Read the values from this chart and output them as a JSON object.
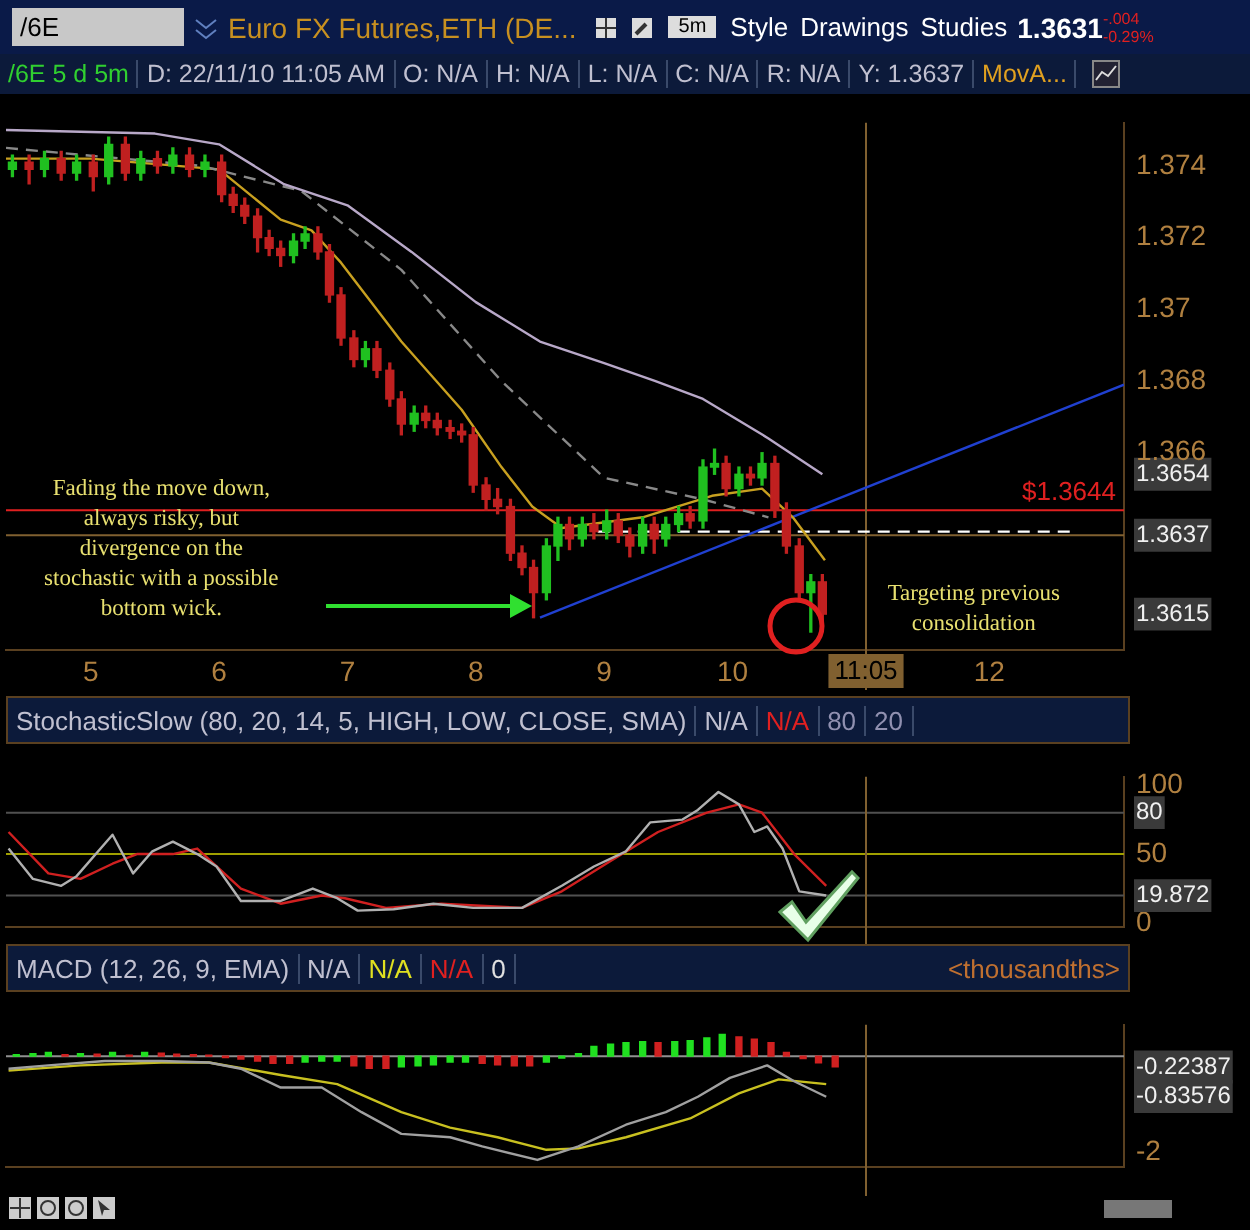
{
  "chart_data": [
    {
      "type": "candlestick",
      "title": "Euro FX Futures,ETH (DE...",
      "annotations": [
        "/6E",
        "5m",
        "Style",
        "Drawings",
        "Studies",
        "1.3631",
        "-.004",
        "-0.29%",
        "/6E 5 d 5m",
        "D: 22/11/10 11:05 AM",
        "O: N/A",
        "H: N/A",
        "L: N/A",
        "C: N/A",
        "R: N/A",
        "Y: 1.3637",
        "MovA...",
        {
          "text": "Fading the move down, always risky, but divergence on the stochastic with a possible bottom wick.",
          "x": 5.55,
          "y": 1.3638
        },
        {
          "text": "Targeting previous consolidation",
          "x": 11.88,
          "y": 1.3638
        }
      ],
      "x": [
        4.39,
        4.52,
        4.64,
        4.77,
        4.89,
        5.02,
        5.14,
        5.27,
        5.39,
        5.52,
        5.64,
        5.77,
        5.89,
        6.02,
        6.11,
        6.2,
        6.3,
        6.39,
        6.48,
        6.58,
        6.67,
        6.77,
        6.86,
        6.95,
        7.05,
        7.14,
        7.23,
        7.33,
        7.42,
        7.52,
        7.61,
        7.7,
        7.8,
        7.89,
        7.98,
        8.08,
        8.17,
        8.27,
        8.36,
        8.45,
        8.55,
        8.64,
        8.73,
        8.83,
        8.92,
        9.02,
        9.11,
        9.2,
        9.3,
        9.39,
        9.48,
        9.58,
        9.67,
        9.77,
        9.86,
        9.95,
        10.05,
        10.14,
        10.23,
        10.33,
        10.42,
        10.52,
        10.61,
        10.7
      ],
      "ohlc": [
        [
          1.3739,
          1.3743,
          1.3737,
          1.3741
        ],
        [
          1.3741,
          1.3743,
          1.3735,
          1.3739
        ],
        [
          1.3739,
          1.3744,
          1.3737,
          1.3742
        ],
        [
          1.3742,
          1.3744,
          1.3736,
          1.3738
        ],
        [
          1.3738,
          1.3743,
          1.3736,
          1.3741
        ],
        [
          1.3741,
          1.3743,
          1.3733,
          1.3737
        ],
        [
          1.3737,
          1.3748,
          1.3735,
          1.3746
        ],
        [
          1.3746,
          1.3748,
          1.3736,
          1.3738
        ],
        [
          1.3738,
          1.3744,
          1.3736,
          1.3742
        ],
        [
          1.3742,
          1.3744,
          1.3738,
          1.374
        ],
        [
          1.374,
          1.3745,
          1.3738,
          1.3743
        ],
        [
          1.3743,
          1.3745,
          1.3737,
          1.3739
        ],
        [
          1.3739,
          1.3743,
          1.3737,
          1.3741
        ],
        [
          1.3741,
          1.3743,
          1.373,
          1.3732
        ],
        [
          1.3732,
          1.3734,
          1.3727,
          1.3729
        ],
        [
          1.3729,
          1.3731,
          1.3724,
          1.3726
        ],
        [
          1.3726,
          1.3728,
          1.3716,
          1.372
        ],
        [
          1.372,
          1.3722,
          1.3715,
          1.3717
        ],
        [
          1.3717,
          1.3719,
          1.3712,
          1.3715
        ],
        [
          1.3715,
          1.3721,
          1.3713,
          1.3719
        ],
        [
          1.3719,
          1.3723,
          1.3717,
          1.3721
        ],
        [
          1.3721,
          1.3723,
          1.3714,
          1.3716
        ],
        [
          1.3716,
          1.3718,
          1.3702,
          1.3704
        ],
        [
          1.3704,
          1.3706,
          1.369,
          1.3692
        ],
        [
          1.3692,
          1.3694,
          1.3684,
          1.3686
        ],
        [
          1.3686,
          1.3691,
          1.3684,
          1.3689
        ],
        [
          1.3689,
          1.3691,
          1.3681,
          1.3683
        ],
        [
          1.3683,
          1.3685,
          1.3673,
          1.3675
        ],
        [
          1.3675,
          1.3677,
          1.3665,
          1.3668
        ],
        [
          1.3668,
          1.3673,
          1.3666,
          1.3671
        ],
        [
          1.3671,
          1.3673,
          1.3667,
          1.3669
        ],
        [
          1.3669,
          1.3671,
          1.3665,
          1.3667
        ],
        [
          1.3667,
          1.3669,
          1.3664,
          1.3666
        ],
        [
          1.3666,
          1.3668,
          1.3663,
          1.3665
        ],
        [
          1.3665,
          1.3667,
          1.3649,
          1.3651
        ],
        [
          1.3651,
          1.3653,
          1.3644,
          1.3647
        ],
        [
          1.3647,
          1.365,
          1.3643,
          1.3645
        ],
        [
          1.3645,
          1.3647,
          1.363,
          1.3632
        ],
        [
          1.3632,
          1.3634,
          1.3626,
          1.3628
        ],
        [
          1.3628,
          1.363,
          1.3614,
          1.3621
        ],
        [
          1.3621,
          1.3636,
          1.3619,
          1.3634
        ],
        [
          1.3634,
          1.3642,
          1.363,
          1.364
        ],
        [
          1.364,
          1.3642,
          1.3633,
          1.3636
        ],
        [
          1.3636,
          1.3642,
          1.3634,
          1.364
        ],
        [
          1.364,
          1.3643,
          1.3636,
          1.3638
        ],
        [
          1.3638,
          1.3644,
          1.3636,
          1.3641
        ],
        [
          1.3641,
          1.3643,
          1.3635,
          1.3637
        ],
        [
          1.3637,
          1.3639,
          1.3631,
          1.3634
        ],
        [
          1.3634,
          1.3642,
          1.3632,
          1.364
        ],
        [
          1.364,
          1.3642,
          1.3632,
          1.3636
        ],
        [
          1.3636,
          1.3642,
          1.3634,
          1.364
        ],
        [
          1.364,
          1.3645,
          1.3638,
          1.3643
        ],
        [
          1.3643,
          1.3645,
          1.3639,
          1.3641
        ],
        [
          1.3641,
          1.3658,
          1.3639,
          1.3656
        ],
        [
          1.3656,
          1.3661,
          1.3654,
          1.3657
        ],
        [
          1.3657,
          1.3659,
          1.3648,
          1.365
        ],
        [
          1.365,
          1.3656,
          1.3648,
          1.3654
        ],
        [
          1.3654,
          1.3656,
          1.3651,
          1.3653
        ],
        [
          1.3653,
          1.366,
          1.3651,
          1.3657
        ],
        [
          1.3657,
          1.3659,
          1.3642,
          1.3644
        ],
        [
          1.3644,
          1.3646,
          1.3632,
          1.3634
        ],
        [
          1.3634,
          1.3636,
          1.3619,
          1.3621
        ],
        [
          1.3621,
          1.3626,
          1.361,
          1.3624
        ],
        [
          1.3624,
          1.3626,
          1.3613,
          1.3615
        ]
      ],
      "colors": [
        "#20c020",
        "#c02020",
        "#20c020",
        "#c02020",
        "#20c020",
        "#c02020",
        "#20c020",
        "#c02020",
        "#20c020",
        "#c02020",
        "#20c020",
        "#c02020",
        "#20c020",
        "#c02020",
        "#c02020",
        "#c02020",
        "#c02020",
        "#c02020",
        "#c02020",
        "#20c020",
        "#20c020",
        "#c02020",
        "#c02020",
        "#c02020",
        "#c02020",
        "#20c020",
        "#c02020",
        "#c02020",
        "#c02020",
        "#20c020",
        "#c02020",
        "#c02020",
        "#c02020",
        "#c02020",
        "#c02020",
        "#c02020",
        "#c02020",
        "#c02020",
        "#c02020",
        "#c02020",
        "#20c020",
        "#20c020",
        "#c02020",
        "#20c020",
        "#c02020",
        "#20c020",
        "#c02020",
        "#c02020",
        "#20c020",
        "#c02020",
        "#20c020",
        "#20c020",
        "#c02020",
        "#20c020",
        "#20c020",
        "#c02020",
        "#20c020",
        "#c02020",
        "#20c020",
        "#c02020",
        "#c02020",
        "#c02020",
        "#20c020",
        "#c02020"
      ],
      "series": [
        {
          "type": "line",
          "color": "#b8a8c8",
          "x": [
            4.34,
            5.5,
            6.0,
            6.5,
            7.0,
            7.5,
            8.0,
            8.5,
            9.0,
            9.4,
            9.77,
            10.28,
            10.7
          ],
          "values": [
            1.375,
            1.3749,
            1.3746,
            1.3735,
            1.3729,
            1.3716,
            1.3702,
            1.3691,
            1.3685,
            1.368,
            1.3675,
            1.3664,
            1.3654
          ]
        },
        {
          "type": "line",
          "color": "#888888",
          "line_style": "dashed",
          "x": [
            4.34,
            5.86,
            6.64,
            7.42,
            8.2,
            9.0,
            9.77,
            10.28
          ],
          "values": [
            1.3745,
            1.374,
            1.3733,
            1.3711,
            1.368,
            1.3653,
            1.3647,
            1.3642
          ]
        },
        {
          "type": "line",
          "color": "#c8a020",
          "x": [
            4.34,
            5.0,
            6.0,
            6.48,
            6.72,
            6.95,
            7.42,
            7.89,
            8.2,
            8.44,
            8.67,
            9.3,
            9.84,
            10.23,
            10.47,
            10.72
          ],
          "values": [
            1.3742,
            1.3742,
            1.3739,
            1.3725,
            1.3722,
            1.3713,
            1.3691,
            1.3672,
            1.3656,
            1.3645,
            1.3639,
            1.3642,
            1.3648,
            1.365,
            1.3642,
            1.363
          ]
        },
        {
          "type": "line",
          "color": "#2040d0",
          "x": [
            8.5,
            13.05
          ],
          "values": [
            1.3614,
            1.3679
          ]
        },
        {
          "type": "line",
          "color": "#ffffff",
          "line_style": "dashed",
          "x": [
            8.95,
            12.66
          ],
          "values": [
            1.3638,
            1.3638
          ]
        }
      ],
      "ref_lines": [
        {
          "axis": "y",
          "value": 1.3644,
          "label": "$1.3644",
          "color": "#e02020"
        },
        {
          "axis": "y",
          "value": 1.3637,
          "color": "#806030"
        },
        {
          "axis": "x",
          "value": 11.04,
          "label": "11:05",
          "color": "#806030"
        }
      ],
      "xlim": [
        4.34,
        13.05
      ],
      "xticks": [
        5,
        6,
        7,
        8,
        9,
        10,
        12
      ],
      "ylim": [
        1.3605,
        1.3752
      ],
      "yticks": [
        {
          "value": 1.3615,
          "label": "1.3615"
        },
        {
          "value": 1.3637,
          "label": "1.3637"
        },
        {
          "value": 1.3654,
          "label": "1.3654"
        },
        1.366,
        1.368,
        1.37,
        1.372,
        1.374
      ]
    },
    {
      "type": "line",
      "title": "StochasticSlow (80, 20, 14, 5, HIGH, LOW, CLOSE, SMA)",
      "annotations": [
        "N/A",
        "N/A",
        "80",
        "20"
      ],
      "series": [
        {
          "color": "#b0b0b0",
          "x": [
            4.36,
            4.55,
            4.77,
            4.89,
            5.17,
            5.33,
            5.48,
            5.64,
            5.83,
            5.98,
            6.17,
            6.48,
            6.73,
            6.92,
            7.08,
            7.36,
            7.67,
            7.98,
            8.36,
            8.67,
            8.92,
            9.17,
            9.36,
            9.61,
            9.73,
            9.89,
            10.05,
            10.17,
            10.27,
            10.39,
            10.52,
            10.73
          ],
          "values": [
            54,
            32,
            27,
            34,
            64,
            36,
            52,
            59,
            50,
            41,
            16,
            16,
            25,
            18,
            9,
            10,
            14,
            11,
            11,
            27,
            41,
            52,
            73,
            75,
            82,
            95,
            86,
            66,
            70,
            54,
            23,
            20
          ]
        },
        {
          "color": "#d02020",
          "x": [
            4.36,
            4.67,
            4.92,
            5.17,
            5.36,
            5.64,
            5.83,
            6.17,
            6.48,
            6.8,
            6.98,
            7.3,
            7.73,
            8.36,
            8.67,
            9.05,
            9.42,
            9.8,
            10.05,
            10.23,
            10.48,
            10.73
          ],
          "values": [
            66,
            36,
            32,
            43,
            50,
            50,
            54,
            25,
            14,
            20,
            18,
            11,
            14,
            11,
            23,
            45,
            66,
            80,
            86,
            80,
            50,
            27
          ]
        }
      ],
      "ref_lines": [
        {
          "axis": "y",
          "value": 20,
          "color": "#505050"
        },
        {
          "axis": "y",
          "value": 50,
          "color": "#a0a000"
        },
        {
          "axis": "y",
          "value": 80,
          "color": "#505050"
        },
        {
          "axis": "x",
          "value": 11.04,
          "color": "#806030"
        }
      ],
      "xlim": [
        4.34,
        13.05
      ],
      "ylim": [
        -3,
        106
      ],
      "yticks": [
        0,
        {
          "value": 19.872,
          "label": "19.872"
        },
        50,
        {
          "value": 80,
          "label": "80"
        },
        100
      ],
      "tick_labels": "y"
    },
    {
      "type": "line",
      "title": "MACD (12, 26, 9, EMA)",
      "annotations": [
        "N/A",
        "N/A",
        "N/A",
        "0",
        "<thousandths>"
      ],
      "series": [
        {
          "type": "bar",
          "x": [
            4.42,
            4.55,
            4.67,
            4.8,
            4.92,
            5.05,
            5.17,
            5.3,
            5.42,
            5.55,
            5.67,
            5.8,
            5.92,
            6.05,
            6.17,
            6.3,
            6.42,
            6.55,
            6.67,
            6.8,
            6.92,
            7.05,
            7.17,
            7.3,
            7.42,
            7.55,
            7.67,
            7.8,
            7.92,
            8.05,
            8.17,
            8.3,
            8.42,
            8.55,
            8.67,
            8.8,
            8.92,
            9.05,
            9.17,
            9.3,
            9.42,
            9.55,
            9.67,
            9.8,
            9.92,
            10.05,
            10.17,
            10.3,
            10.42,
            10.55,
            10.67,
            10.8
          ],
          "values": [
            0.03,
            0.05,
            0.08,
            0.03,
            0.05,
            0.04,
            0.08,
            0.02,
            0.08,
            0.06,
            0.04,
            0.03,
            0.02,
            -0.03,
            -0.06,
            -0.1,
            -0.15,
            -0.15,
            -0.12,
            -0.1,
            -0.1,
            -0.2,
            -0.25,
            -0.25,
            -0.22,
            -0.2,
            -0.18,
            -0.12,
            -0.12,
            -0.15,
            -0.18,
            -0.2,
            -0.2,
            -0.12,
            -0.04,
            0.05,
            0.2,
            0.25,
            0.28,
            0.3,
            0.28,
            0.3,
            0.32,
            0.38,
            0.45,
            0.4,
            0.35,
            0.28,
            0.08,
            -0.05,
            -0.14,
            -0.22
          ],
          "colors": [
            "#20e020",
            "#20e020",
            "#20e020",
            "#d02020",
            "#20e020",
            "#d02020",
            "#20e020",
            "#d02020",
            "#20e020",
            "#d02020",
            "#d02020",
            "#d02020",
            "#d02020",
            "#d02020",
            "#d02020",
            "#d02020",
            "#d02020",
            "#d02020",
            "#20e020",
            "#20e020",
            "#20e020",
            "#d02020",
            "#d02020",
            "#d02020",
            "#20e020",
            "#20e020",
            "#20e020",
            "#20e020",
            "#20e020",
            "#d02020",
            "#d02020",
            "#d02020",
            "#d02020",
            "#20e020",
            "#20e020",
            "#20e020",
            "#20e020",
            "#20e020",
            "#20e020",
            "#20e020",
            "#d02020",
            "#20e020",
            "#20e020",
            "#20e020",
            "#20e020",
            "#d02020",
            "#d02020",
            "#d02020",
            "#d02020",
            "#d02020",
            "#d02020",
            "#d02020"
          ]
        },
        {
          "color": "#a0a0a0",
          "x": [
            4.36,
            4.67,
            5.11,
            5.55,
            5.92,
            6.17,
            6.48,
            6.8,
            7.11,
            7.42,
            7.8,
            8.05,
            8.48,
            8.8,
            9.17,
            9.48,
            9.73,
            9.98,
            10.27,
            10.48,
            10.73
          ],
          "values": [
            -0.26,
            -0.19,
            -0.1,
            -0.1,
            -0.13,
            -0.26,
            -0.65,
            -0.65,
            -1.16,
            -1.61,
            -1.68,
            -1.87,
            -2.15,
            -1.87,
            -1.42,
            -1.16,
            -0.84,
            -0.45,
            -0.19,
            -0.52,
            -0.84
          ]
        },
        {
          "color": "#c8c020",
          "x": [
            4.36,
            4.92,
            5.55,
            5.92,
            6.48,
            6.92,
            7.42,
            7.8,
            8.17,
            8.55,
            8.8,
            9.17,
            9.67,
            10.05,
            10.36,
            10.73
          ],
          "values": [
            -0.3,
            -0.19,
            -0.13,
            -0.13,
            -0.39,
            -0.58,
            -1.16,
            -1.48,
            -1.68,
            -1.94,
            -1.91,
            -1.68,
            -1.29,
            -0.77,
            -0.48,
            -0.58
          ]
        }
      ],
      "ref_lines": [
        {
          "axis": "y",
          "value": 0,
          "color": "#909090"
        },
        {
          "axis": "x",
          "value": 11.04,
          "color": "#806030"
        }
      ],
      "xlim": [
        4.34,
        13.05
      ],
      "ylim": [
        -2.3,
        0.65
      ],
      "yticks": [
        -2,
        {
          "value": -0.83576,
          "label": "-0.83576"
        },
        {
          "value": -0.22387,
          "label": "-0.22387"
        },
        {
          "value": 0,
          "label": null
        }
      ],
      "tick_labels": "y"
    }
  ]
}
